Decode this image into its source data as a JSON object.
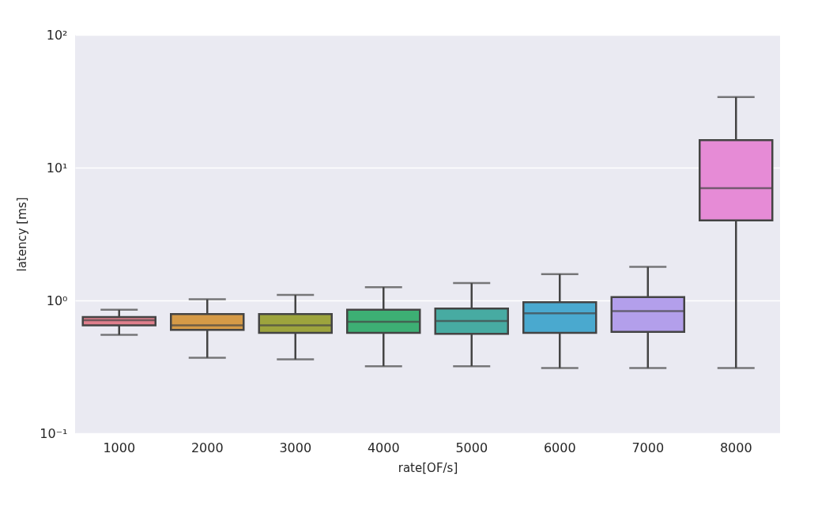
{
  "chart_data": {
    "type": "box",
    "xlabel": "rate[OF/s]",
    "ylabel": "latency [ms]",
    "categories": [
      "1000",
      "2000",
      "3000",
      "4000",
      "5000",
      "6000",
      "7000",
      "8000"
    ],
    "colors": [
      "#e07f8c",
      "#d59a47",
      "#9da43d",
      "#3daf74",
      "#47aba2",
      "#4aa9cf",
      "#b39feb",
      "#e68bd6"
    ],
    "boxes": [
      {
        "low": 0.55,
        "q1": 0.65,
        "median": 0.71,
        "q3": 0.75,
        "high": 0.85
      },
      {
        "low": 0.37,
        "q1": 0.6,
        "median": 0.65,
        "q3": 0.79,
        "high": 1.02
      },
      {
        "low": 0.36,
        "q1": 0.57,
        "median": 0.65,
        "q3": 0.79,
        "high": 1.1
      },
      {
        "low": 0.32,
        "q1": 0.57,
        "median": 0.69,
        "q3": 0.85,
        "high": 1.26
      },
      {
        "low": 0.32,
        "q1": 0.56,
        "median": 0.7,
        "q3": 0.87,
        "high": 1.35
      },
      {
        "low": 0.31,
        "q1": 0.57,
        "median": 0.8,
        "q3": 0.97,
        "high": 1.58
      },
      {
        "low": 0.31,
        "q1": 0.58,
        "median": 0.83,
        "q3": 1.06,
        "high": 1.79
      },
      {
        "low": 0.31,
        "q1": 4.0,
        "median": 7.0,
        "q3": 16.1,
        "high": 34
      }
    ],
    "log": true,
    "ylim": [
      0.1,
      100
    ],
    "yticks": [
      {
        "value": 0.1,
        "label": "10⁻¹"
      },
      {
        "value": 1,
        "label": "10⁰"
      },
      {
        "value": 10,
        "label": "10¹"
      },
      {
        "value": 100,
        "label": "10²"
      }
    ],
    "grid": "y"
  }
}
